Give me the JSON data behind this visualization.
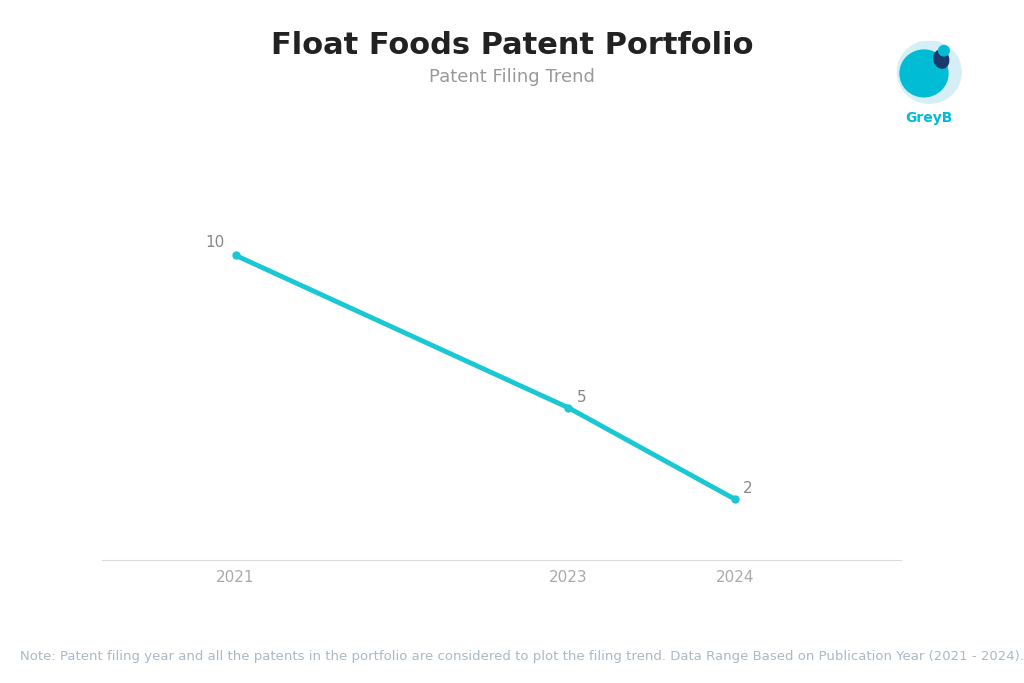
{
  "title": "Float Foods Patent Portfolio",
  "subtitle": "Patent Filing Trend",
  "x_values": [
    2021,
    2023,
    2024
  ],
  "y_values": [
    10,
    5,
    2
  ],
  "line_color": "#1AC8D4",
  "line_width": 3.5,
  "marker_size": 5,
  "background_color": "#ffffff",
  "x_ticks": [
    2021,
    2023,
    2024
  ],
  "ylim": [
    0,
    13
  ],
  "xlim": [
    2020.2,
    2025.0
  ],
  "title_fontsize": 22,
  "subtitle_fontsize": 13,
  "tick_fontsize": 11,
  "note_text": "Note: Patent filing year and all the patents in the portfolio are considered to plot the filing trend. Data Range Based on Publication Year (2021 - 2024).",
  "note_fontsize": 9.5,
  "note_color": "#aab8c8",
  "label_color": "#888888",
  "tick_color": "#aaaaaa",
  "greyb_color": "#00BCD4",
  "greyb_text": "GreyB",
  "annotation_color": "#888888"
}
